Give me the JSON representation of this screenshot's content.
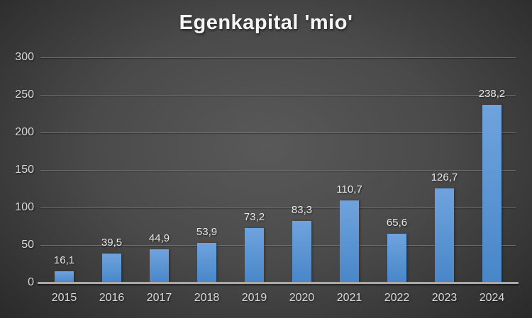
{
  "chart_data": {
    "type": "bar",
    "title": "Egenkapital 'mio'",
    "categories": [
      "2015",
      "2016",
      "2017",
      "2018",
      "2019",
      "2020",
      "2021",
      "2022",
      "2023",
      "2024"
    ],
    "values": [
      16.1,
      39.5,
      44.9,
      53.9,
      73.2,
      83.3,
      110.7,
      65.6,
      126.7,
      238.2
    ],
    "value_labels": [
      "16,1",
      "39,5",
      "44,9",
      "53,9",
      "73,2",
      "83,3",
      "110,7",
      "65,6",
      "126,7",
      "238,2"
    ],
    "ytick_labels": [
      "0",
      "50",
      "100",
      "150",
      "200",
      "250",
      "300"
    ],
    "yticks": [
      0,
      50,
      100,
      150,
      200,
      250,
      300
    ],
    "ylim": [
      0,
      300
    ],
    "xlabel": "",
    "ylabel": "",
    "grid": true,
    "legend": false,
    "decimal_separator": ",",
    "colors": {
      "bar_top": "#6FA3DE",
      "bar_bottom": "#4886C8",
      "background_center": "#595959",
      "background_edge": "#1d1d1d",
      "gridline": "#6f6f6f",
      "axis_line": "#a8a8a8",
      "label_text": "#d9d9d9",
      "value_text": "#e8e8e8",
      "title_text": "#f5f5f5"
    }
  }
}
